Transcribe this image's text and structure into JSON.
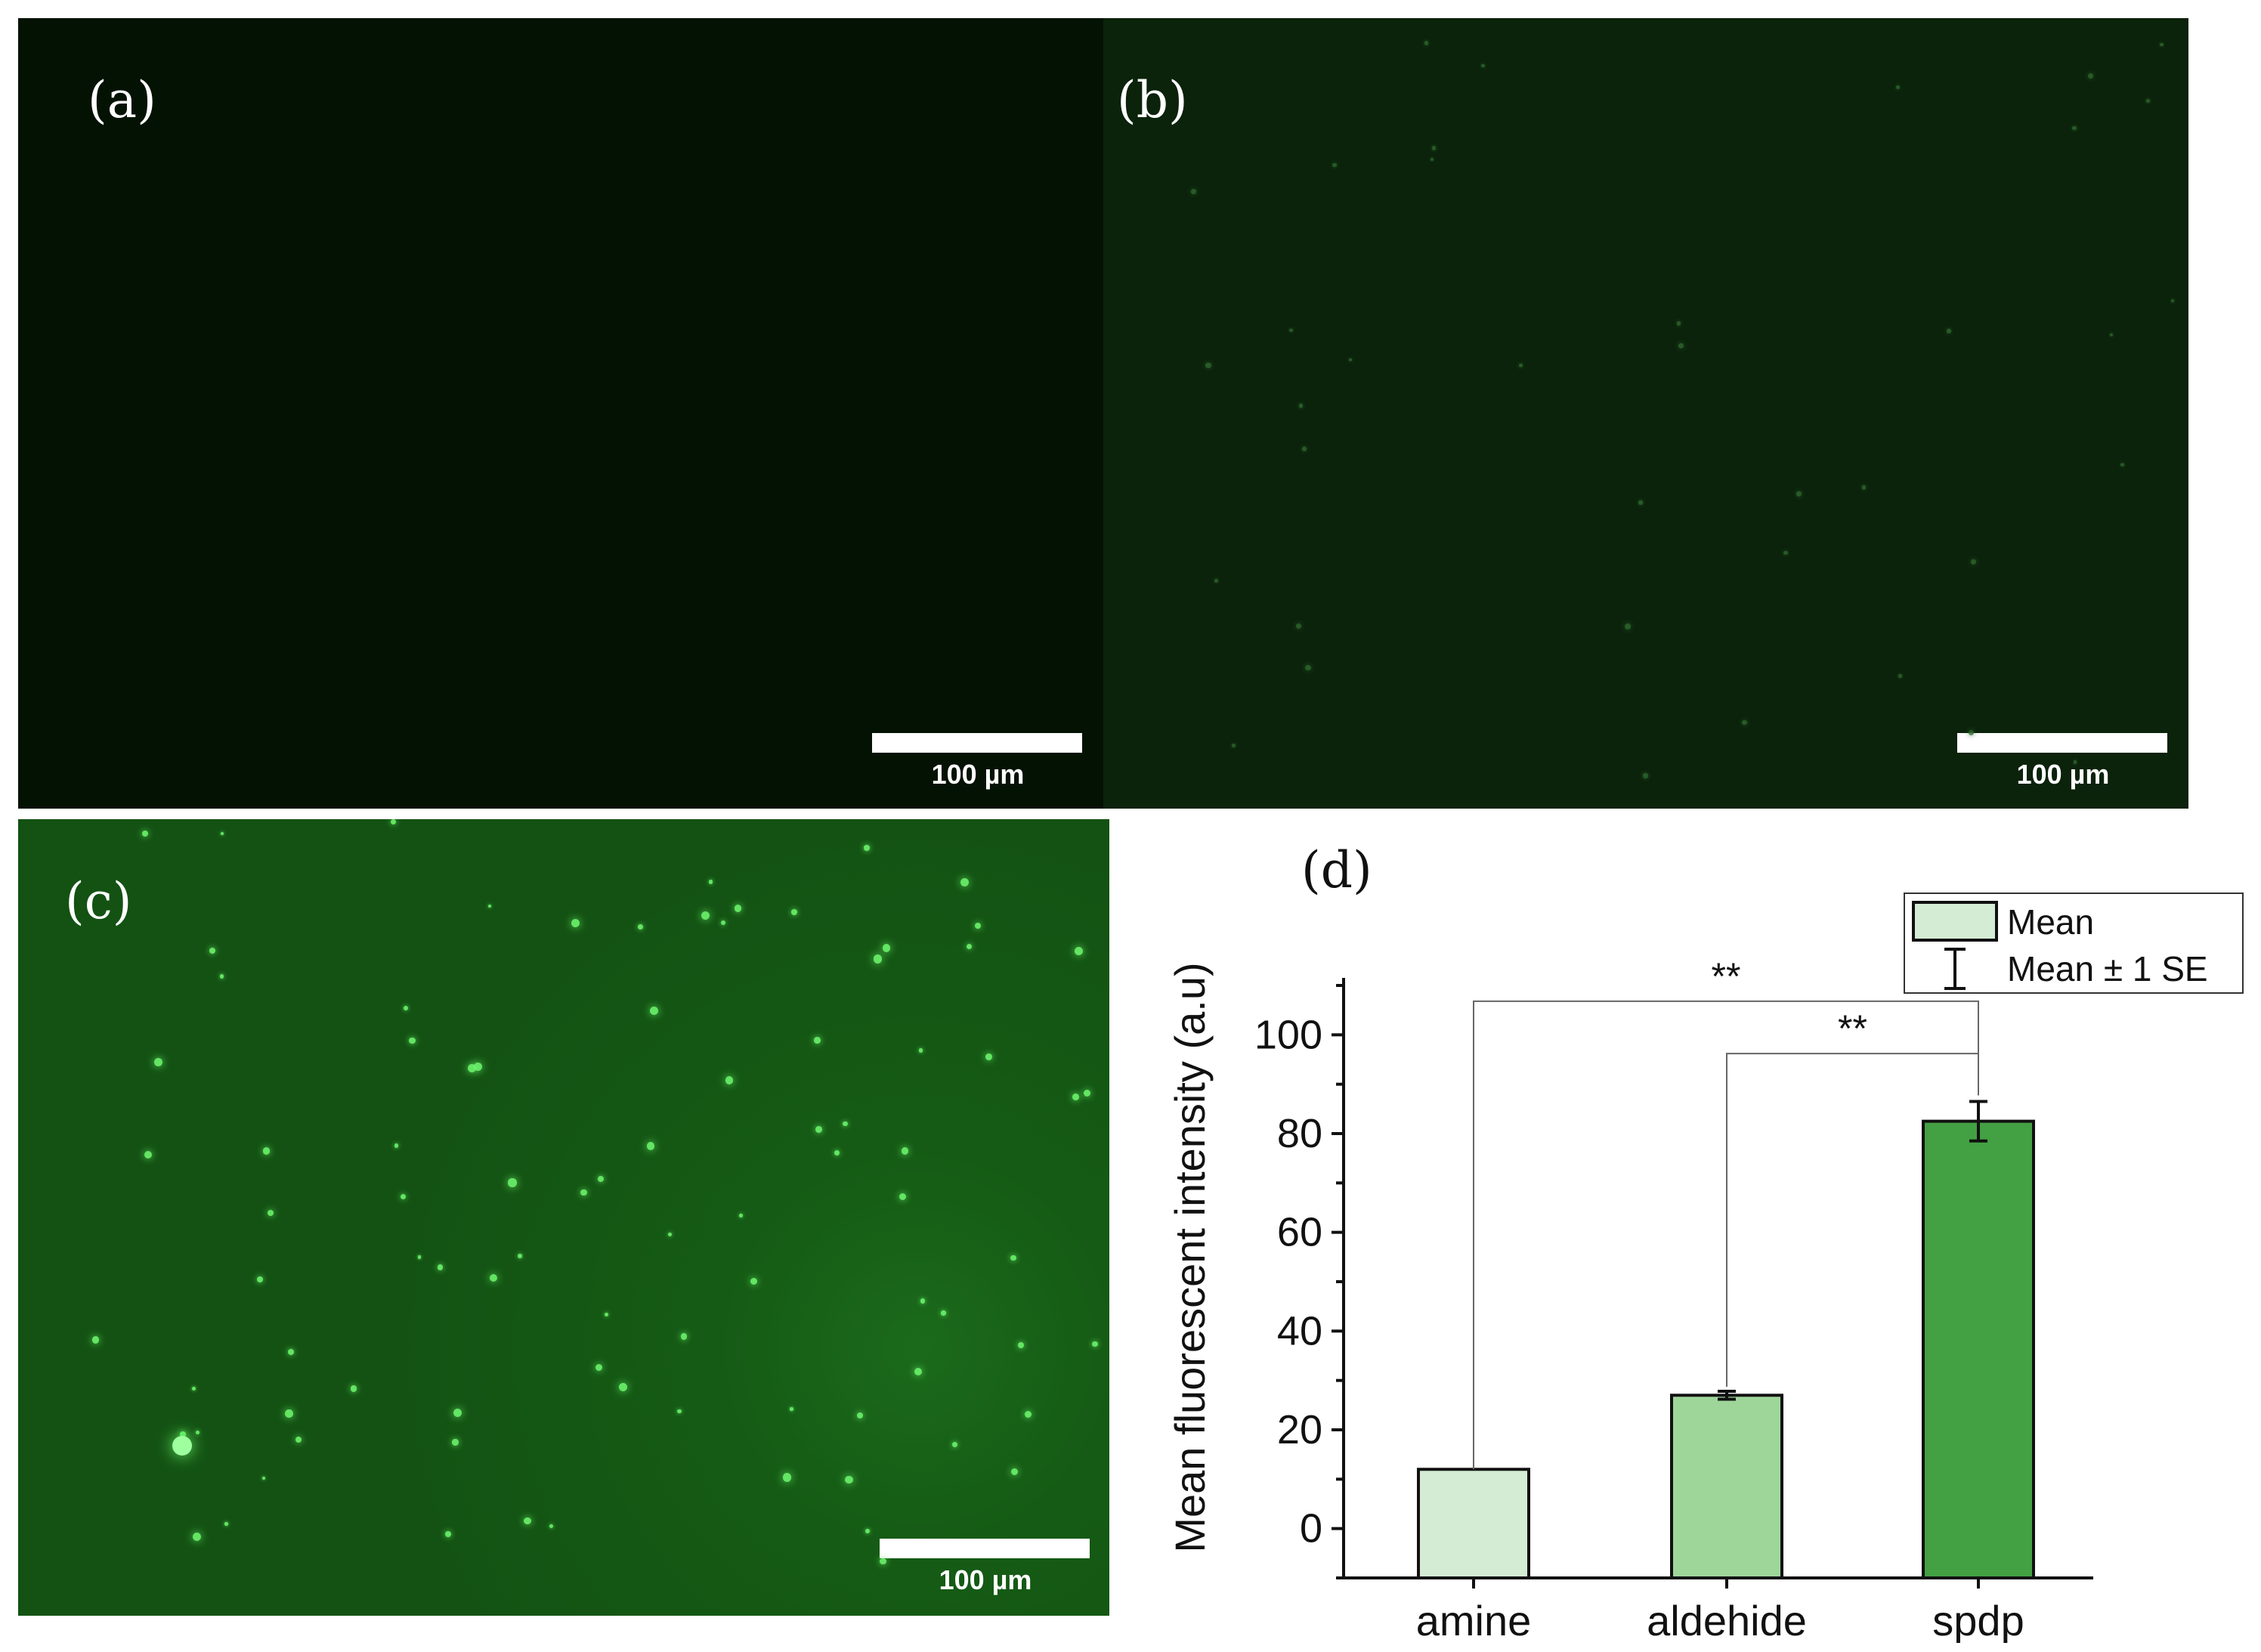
{
  "panels": {
    "a": {
      "label": "(a)",
      "scale_label": "100 µm"
    },
    "b": {
      "label": "(b)",
      "scale_label": "100 µm"
    },
    "c": {
      "label": "(c)",
      "scale_label": "100 µm"
    },
    "d": {
      "label": "(d)"
    }
  },
  "colors": {
    "bar_amine": "#d4ecd4",
    "bar_aldehide": "#9ed69a",
    "bar_spdp": "#43a043",
    "legend_swatch": "#d4ecd4"
  },
  "chart_data": {
    "type": "bar",
    "categories": [
      "amine",
      "aldehide",
      "spdp"
    ],
    "values": [
      12,
      27,
      82.5
    ],
    "error": [
      0,
      0.8,
      4
    ],
    "ylabel": "Mean fluorescent intensity (a.u)",
    "ylim": [
      -10,
      110
    ],
    "yticks": [
      0,
      20,
      40,
      60,
      80,
      100
    ],
    "legend": {
      "position": "top-right",
      "entries": [
        "Mean",
        "Mean ± 1 SE"
      ]
    },
    "significance": [
      {
        "from": "amine",
        "to": "spdp",
        "label": "**"
      },
      {
        "from": "aldehide",
        "to": "spdp",
        "label": "**"
      }
    ]
  }
}
